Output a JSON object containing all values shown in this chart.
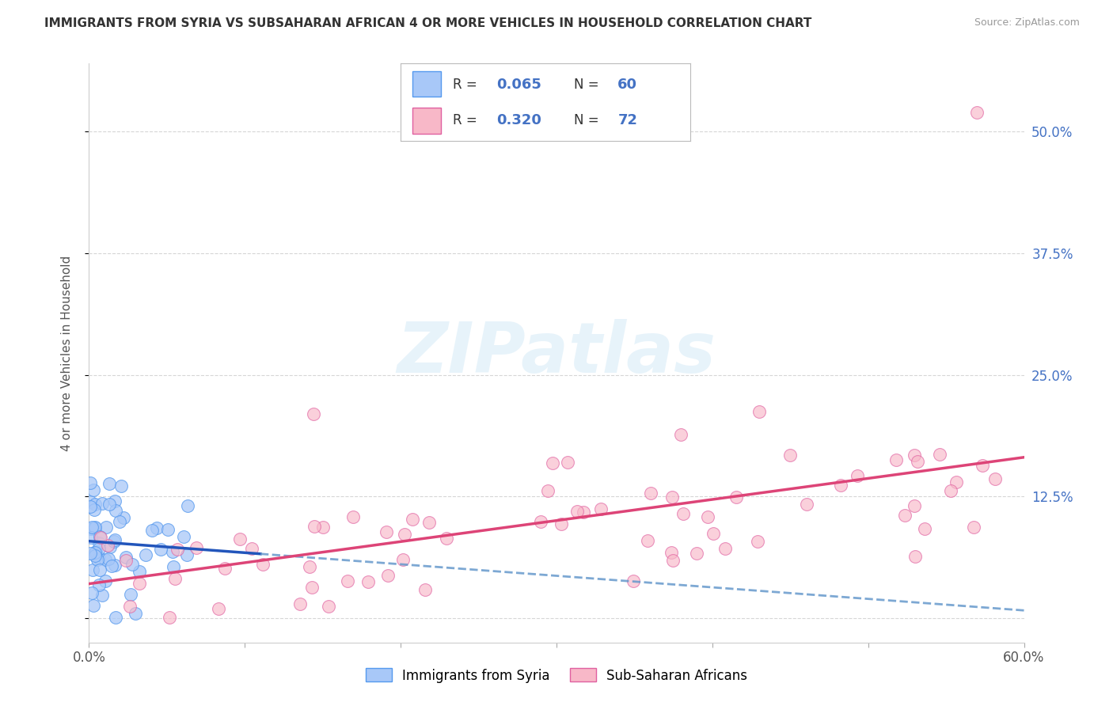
{
  "title": "IMMIGRANTS FROM SYRIA VS SUBSAHARAN AFRICAN 4 OR MORE VEHICLES IN HOUSEHOLD CORRELATION CHART",
  "source": "Source: ZipAtlas.com",
  "ylabel": "4 or more Vehicles in Household",
  "xlim": [
    0.0,
    0.6
  ],
  "ylim": [
    -0.025,
    0.57
  ],
  "color_syria": "#A8C8F8",
  "color_syria_edge": "#5599EE",
  "color_subsaharan": "#F8B8C8",
  "color_subsaharan_edge": "#E060A0",
  "color_trend_syria_solid": "#2255BB",
  "color_trend_syria_dashed": "#6699CC",
  "color_trend_subsaharan": "#DD4477",
  "watermark": "ZIPatlas",
  "legend_r1": "0.065",
  "legend_n1": "60",
  "legend_r2": "0.320",
  "legend_n2": "72",
  "label_syria": "Immigrants from Syria",
  "label_subsaharan": "Sub-Saharan Africans",
  "ytick_labels_right": [
    "",
    "12.5%",
    "25.0%",
    "37.5%",
    "50.0%"
  ],
  "ytick_vals": [
    0.0,
    0.125,
    0.25,
    0.375,
    0.5
  ]
}
